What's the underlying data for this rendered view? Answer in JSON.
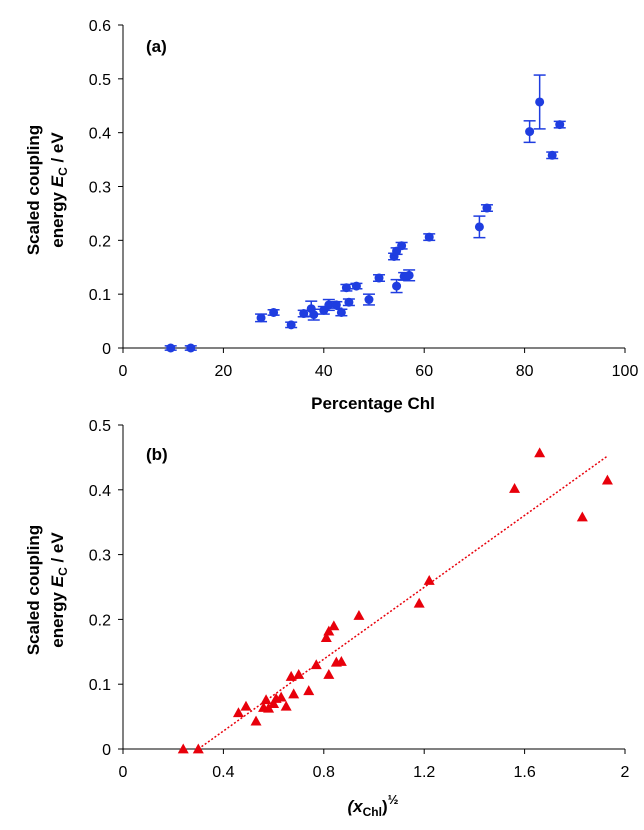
{
  "chart_data": [
    {
      "panel_label": "(a)",
      "type": "scatter",
      "xlabel": "Percentage Chl",
      "ylabel_line1": "Scaled coupling",
      "ylabel_line2_prefix": "energy ",
      "ylabel_italic": "E",
      "ylabel_sub": "C",
      "ylabel_suffix": " / eV",
      "xlim": [
        0,
        100
      ],
      "ylim": [
        0,
        0.6
      ],
      "xticks": [
        0,
        20,
        40,
        60,
        80,
        100
      ],
      "xtick_labels": [
        "0",
        "20",
        "40",
        "60",
        "80",
        "100"
      ],
      "yticks": [
        0,
        0.1,
        0.2,
        0.3,
        0.4,
        0.5,
        0.6
      ],
      "ytick_labels": [
        "0",
        "0.1",
        "0.2",
        "0.3",
        "0.4",
        "0.5",
        "0.6"
      ],
      "marker": "circle",
      "color": "#1f3de0",
      "grid": false,
      "points": [
        {
          "x": 9.5,
          "y": 0.0,
          "err": 0.004
        },
        {
          "x": 13.5,
          "y": 0.0,
          "err": 0.004
        },
        {
          "x": 27.5,
          "y": 0.056,
          "err": 0.007
        },
        {
          "x": 30,
          "y": 0.066,
          "err": 0.005
        },
        {
          "x": 33.5,
          "y": 0.043,
          "err": 0.005
        },
        {
          "x": 36,
          "y": 0.064,
          "err": 0.006
        },
        {
          "x": 37.5,
          "y": 0.073,
          "err": 0.014
        },
        {
          "x": 38,
          "y": 0.062,
          "err": 0.01
        },
        {
          "x": 40,
          "y": 0.07,
          "err": 0.007
        },
        {
          "x": 41,
          "y": 0.08,
          "err": 0.01
        },
        {
          "x": 42.5,
          "y": 0.08,
          "err": 0.006
        },
        {
          "x": 43.5,
          "y": 0.066,
          "err": 0.006
        },
        {
          "x": 44.5,
          "y": 0.112,
          "err": 0.006
        },
        {
          "x": 45,
          "y": 0.085,
          "err": 0.006
        },
        {
          "x": 46.5,
          "y": 0.115,
          "err": 0.005
        },
        {
          "x": 49,
          "y": 0.09,
          "err": 0.01
        },
        {
          "x": 51,
          "y": 0.13,
          "err": 0.006
        },
        {
          "x": 54,
          "y": 0.17,
          "err": 0.006
        },
        {
          "x": 54.5,
          "y": 0.18,
          "err": 0.006
        },
        {
          "x": 54.5,
          "y": 0.115,
          "err": 0.012
        },
        {
          "x": 55.5,
          "y": 0.19,
          "err": 0.006
        },
        {
          "x": 56,
          "y": 0.133,
          "err": 0.007
        },
        {
          "x": 57,
          "y": 0.135,
          "err": 0.01
        },
        {
          "x": 61,
          "y": 0.206,
          "err": 0.006
        },
        {
          "x": 71,
          "y": 0.225,
          "err": 0.02
        },
        {
          "x": 72.5,
          "y": 0.26,
          "err": 0.006
        },
        {
          "x": 81,
          "y": 0.402,
          "err": 0.02
        },
        {
          "x": 83,
          "y": 0.457,
          "err": 0.05
        },
        {
          "x": 85.5,
          "y": 0.358,
          "err": 0.006
        },
        {
          "x": 87,
          "y": 0.415,
          "err": 0.006
        }
      ]
    },
    {
      "panel_label": "(b)",
      "type": "scatter",
      "xlabel_base": "(x",
      "xlabel_sub": "Chl",
      "xlabel_close": ")",
      "xlabel_sup": "½",
      "ylabel_line1": "Scaled coupling",
      "ylabel_line2_prefix": "energy ",
      "ylabel_italic": "E",
      "ylabel_sub": "C",
      "ylabel_suffix": " / eV",
      "xlim": [
        0,
        2
      ],
      "ylim": [
        0,
        0.5
      ],
      "xticks": [
        0,
        0.4,
        0.8,
        1.2,
        1.6,
        2
      ],
      "xtick_labels": [
        "0",
        "0.4",
        "0.8",
        "1.2",
        "1.6",
        "2"
      ],
      "yticks": [
        0,
        0.1,
        0.2,
        0.3,
        0.4,
        0.5
      ],
      "ytick_labels": [
        "0",
        "0.1",
        "0.2",
        "0.3",
        "0.4",
        "0.5"
      ],
      "marker": "triangle",
      "color": "#e8000b",
      "grid": false,
      "trendline": {
        "x": [
          0.3,
          1.93
        ],
        "y": [
          0.0,
          0.452
        ],
        "style": "dotted"
      },
      "points": [
        {
          "x": 0.24,
          "y": 0.0
        },
        {
          "x": 0.3,
          "y": 0.0
        },
        {
          "x": 0.46,
          "y": 0.056
        },
        {
          "x": 0.49,
          "y": 0.066
        },
        {
          "x": 0.53,
          "y": 0.043
        },
        {
          "x": 0.56,
          "y": 0.064
        },
        {
          "x": 0.57,
          "y": 0.076
        },
        {
          "x": 0.58,
          "y": 0.063
        },
        {
          "x": 0.6,
          "y": 0.07
        },
        {
          "x": 0.61,
          "y": 0.078
        },
        {
          "x": 0.63,
          "y": 0.08
        },
        {
          "x": 0.65,
          "y": 0.066
        },
        {
          "x": 0.67,
          "y": 0.112
        },
        {
          "x": 0.68,
          "y": 0.085
        },
        {
          "x": 0.7,
          "y": 0.115
        },
        {
          "x": 0.74,
          "y": 0.09
        },
        {
          "x": 0.77,
          "y": 0.13
        },
        {
          "x": 0.81,
          "y": 0.172
        },
        {
          "x": 0.82,
          "y": 0.182
        },
        {
          "x": 0.82,
          "y": 0.115
        },
        {
          "x": 0.84,
          "y": 0.19
        },
        {
          "x": 0.85,
          "y": 0.134
        },
        {
          "x": 0.87,
          "y": 0.135
        },
        {
          "x": 0.94,
          "y": 0.206
        },
        {
          "x": 1.18,
          "y": 0.225
        },
        {
          "x": 1.22,
          "y": 0.26
        },
        {
          "x": 1.56,
          "y": 0.402
        },
        {
          "x": 1.66,
          "y": 0.457
        },
        {
          "x": 1.83,
          "y": 0.358
        },
        {
          "x": 1.93,
          "y": 0.415
        }
      ]
    }
  ]
}
